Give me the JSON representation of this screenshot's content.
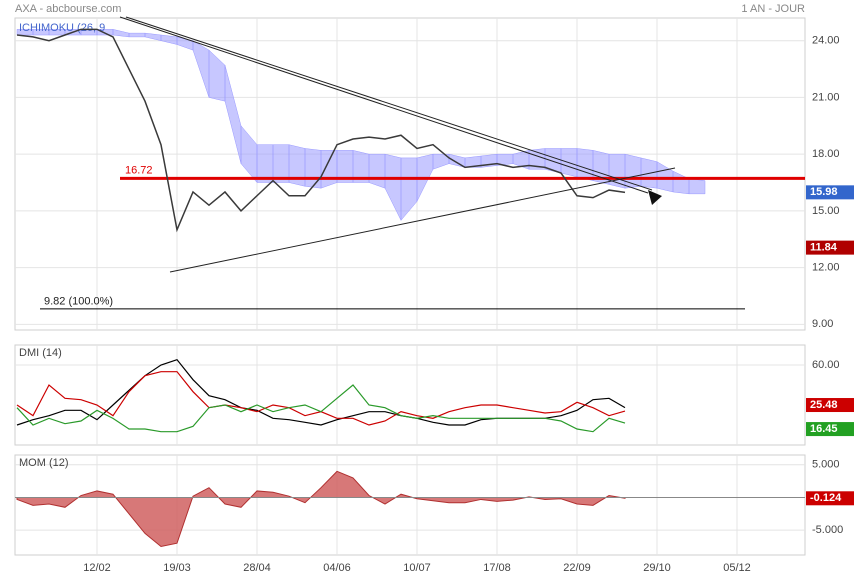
{
  "chart_data": [
    {
      "type": "line",
      "title": "AXA - abcbourse.com",
      "period": "1 AN - JOUR",
      "categories": [
        null,
        null,
        null,
        null,
        null,
        "12/02",
        null,
        null,
        null,
        null,
        "19/03",
        null,
        null,
        null,
        null,
        "28/04",
        null,
        null,
        null,
        null,
        "04/06",
        null,
        null,
        null,
        null,
        "10/07",
        null,
        null,
        null,
        null,
        "17/08",
        null,
        null,
        null,
        null,
        "22/09",
        null,
        null,
        null,
        null,
        "29/10",
        null,
        null,
        null,
        null,
        "05/12",
        null,
        null,
        null,
        null
      ],
      "values": [
        24.3,
        24.2,
        24.0,
        24.3,
        24.6,
        24.6,
        24.2,
        22.5,
        20.8,
        18.5,
        14.0,
        16.0,
        15.3,
        16.0,
        15.0,
        15.8,
        16.6,
        15.8,
        15.8,
        16.8,
        18.5,
        18.8,
        18.9,
        18.8,
        19.0,
        18.3,
        18.5,
        17.8,
        17.3,
        17.4,
        17.5,
        17.3,
        17.4,
        17.3,
        17.0,
        15.8,
        15.7,
        16.1,
        15.98,
        null,
        null,
        null,
        null,
        null,
        null,
        null,
        null,
        null,
        null,
        null
      ],
      "color": "#3a3a3a",
      "badge_color": "#3366cc",
      "cloud": {
        "label": "ICHIMOKU (26, 9",
        "color": "#9999ff",
        "upper": [
          24.6,
          24.6,
          24.6,
          24.6,
          24.6,
          24.6,
          24.6,
          24.4,
          24.4,
          24.3,
          24.2,
          24.0,
          23.5,
          22.7,
          19.5,
          18.5,
          18.5,
          18.5,
          18.3,
          18.2,
          18.2,
          18.2,
          18.0,
          18.0,
          17.8,
          17.8,
          18.0,
          18.0,
          17.8,
          17.9,
          18.0,
          18.0,
          18.2,
          18.3,
          18.3,
          18.3,
          18.2,
          18.0,
          18.0,
          17.8,
          17.6,
          17.1,
          16.7,
          16.6,
          null,
          null,
          null,
          null,
          null,
          null
        ],
        "lower": [
          24.3,
          24.3,
          24.3,
          24.3,
          24.3,
          24.3,
          24.3,
          24.2,
          24.2,
          24.0,
          23.8,
          23.5,
          21.0,
          20.8,
          17.5,
          16.5,
          16.5,
          16.5,
          16.3,
          16.2,
          16.5,
          16.5,
          16.5,
          16.2,
          14.5,
          15.5,
          17.2,
          17.5,
          17.3,
          17.3,
          17.4,
          17.5,
          17.2,
          17.2,
          17.0,
          16.8,
          16.6,
          16.4,
          16.2,
          16.3,
          16.2,
          16.0,
          15.9,
          15.9,
          null,
          null,
          null,
          null,
          null,
          null
        ]
      },
      "hlines": [
        {
          "value": 16.72,
          "color": "#e00000"
        }
      ],
      "retracement": {
        "value": 9.82,
        "label": "9.82  (100.0%)"
      },
      "markers": [
        {
          "value": 11.84,
          "color": "#b00000"
        }
      ],
      "ylim": [
        8.7,
        25.2
      ],
      "yticks": [
        {
          "value": 9,
          "label": "9.00"
        },
        {
          "value": 12,
          "label": "12.00"
        },
        {
          "value": 15,
          "label": "15.00"
        },
        {
          "value": 18,
          "label": "18.00"
        },
        {
          "value": 21,
          "label": "21.00"
        },
        {
          "value": 24,
          "label": "24.00"
        }
      ],
      "grid": true
    },
    {
      "type": "line",
      "title": "DMI (14)",
      "series": [
        {
          "color": "#000000",
          "values": [
            15,
            19,
            22,
            26,
            26,
            19,
            30,
            41,
            52,
            60,
            64,
            49,
            37,
            34,
            28,
            26,
            20,
            19,
            17,
            15,
            19,
            22,
            25,
            25,
            22,
            20,
            17,
            15,
            15,
            19,
            20,
            20,
            20,
            20,
            22,
            26,
            34,
            35,
            28,
            null,
            null,
            null,
            null,
            null,
            null,
            null,
            null,
            null,
            null,
            null
          ]
        },
        {
          "color": "#cc0000",
          "badge_color": "#cc0000",
          "values": [
            30,
            22,
            45,
            35,
            34,
            30,
            22,
            40,
            52,
            55,
            55,
            40,
            28,
            30,
            28,
            25,
            30,
            28,
            22,
            25,
            20,
            20,
            15,
            18,
            25,
            22,
            20,
            25,
            28,
            30,
            30,
            28,
            26,
            24,
            25,
            32,
            28,
            22,
            25.48,
            null,
            null,
            null,
            null,
            null,
            null,
            null,
            null,
            null,
            null,
            null
          ]
        },
        {
          "color": "#2a9a2a",
          "badge_color": "#22a022",
          "values": [
            28,
            15,
            20,
            16,
            18,
            26,
            20,
            12,
            12,
            10,
            10,
            14,
            28,
            30,
            25,
            30,
            25,
            28,
            30,
            25,
            35,
            45,
            30,
            28,
            22,
            20,
            22,
            20,
            20,
            20,
            20,
            20,
            20,
            20,
            18,
            12,
            10,
            20,
            16.45,
            null,
            null,
            null,
            null,
            null,
            null,
            null,
            null,
            null,
            null,
            null
          ]
        }
      ],
      "ylim": [
        0,
        75
      ],
      "yticks": [
        {
          "value": 60,
          "label": "60.00"
        }
      ],
      "grid": true
    },
    {
      "type": "area",
      "title": "MOM (12)",
      "values": [
        -0.3,
        -1.2,
        -1.0,
        -1.5,
        0.3,
        1.0,
        0.5,
        -2.5,
        -5.5,
        -7.5,
        -7.0,
        0.2,
        1.5,
        -1.0,
        -1.5,
        1.0,
        0.8,
        0.2,
        -0.8,
        1.5,
        4.0,
        3.0,
        0.3,
        -1.0,
        0.5,
        -0.2,
        -0.5,
        -0.8,
        -0.8,
        -0.3,
        -0.6,
        -0.4,
        0.1,
        -0.3,
        -0.2,
        -1.0,
        -1.2,
        0.3,
        -0.124,
        null,
        null,
        null,
        null,
        null,
        null,
        null,
        null,
        null,
        null,
        null
      ],
      "color": "#d06060",
      "badge_color": "#cc0000",
      "ylim": [
        -8.8,
        6.5
      ],
      "yticks": [
        {
          "value": -5,
          "label": "-5.000"
        },
        {
          "value": 5,
          "label": "5.000"
        }
      ],
      "grid": true
    }
  ]
}
